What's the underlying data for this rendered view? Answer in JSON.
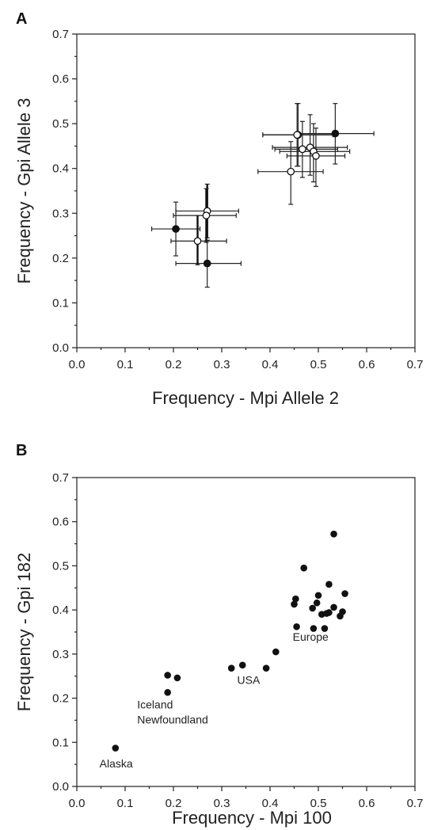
{
  "chart_data": [
    {
      "panel": "A",
      "type": "scatter",
      "xlabel": "Frequency - Mpi Allele 2",
      "ylabel": "Frequency - Gpi Allele 3",
      "xlim": [
        0,
        0.7
      ],
      "ylim": [
        0,
        0.7
      ],
      "xticks": [
        "0.0",
        "0.1",
        "0.2",
        "0.3",
        "0.4",
        "0.5",
        "0.6",
        "0.7"
      ],
      "yticks": [
        "0.0",
        "0.1",
        "0.2",
        "0.3",
        "0.4",
        "0.5",
        "0.6",
        "0.7"
      ],
      "grid": false,
      "series": [
        {
          "marker": "filled",
          "points": [
            {
              "x": 0.205,
              "y": 0.265,
              "xerr": [
                0.155,
                0.255
              ],
              "yerr": [
                0.205,
                0.325
              ]
            },
            {
              "x": 0.27,
              "y": 0.188,
              "xerr": [
                0.205,
                0.34
              ],
              "yerr": [
                0.135,
                0.24
              ]
            },
            {
              "x": 0.535,
              "y": 0.478,
              "xerr": [
                0.455,
                0.615
              ],
              "yerr": [
                0.41,
                0.545
              ]
            },
            {
              "x": 0.458,
              "y": 0.475,
              "xerr": [
                0.385,
                0.535
              ],
              "yerr": [
                0.405,
                0.545
              ]
            }
          ]
        },
        {
          "marker": "open",
          "points": [
            {
              "x": 0.27,
              "y": 0.305,
              "xerr": [
                0.205,
                0.335
              ],
              "yerr": [
                0.245,
                0.365
              ]
            },
            {
              "x": 0.268,
              "y": 0.295,
              "xerr": [
                0.2,
                0.33
              ],
              "yerr": [
                0.235,
                0.355
              ]
            },
            {
              "x": 0.25,
              "y": 0.238,
              "xerr": [
                0.195,
                0.31
              ],
              "yerr": [
                0.185,
                0.295
              ]
            },
            {
              "x": 0.456,
              "y": 0.475,
              "xerr": [
                0.385,
                0.53
              ],
              "yerr": [
                0.405,
                0.545
              ]
            },
            {
              "x": 0.467,
              "y": 0.443,
              "xerr": [
                0.41,
                0.54
              ],
              "yerr": [
                0.38,
                0.505
              ]
            },
            {
              "x": 0.483,
              "y": 0.447,
              "xerr": [
                0.405,
                0.56
              ],
              "yerr": [
                0.385,
                0.52
              ]
            },
            {
              "x": 0.49,
              "y": 0.438,
              "xerr": [
                0.42,
                0.565
              ],
              "yerr": [
                0.37,
                0.5
              ]
            },
            {
              "x": 0.495,
              "y": 0.428,
              "xerr": [
                0.435,
                0.555
              ],
              "yerr": [
                0.36,
                0.49
              ]
            },
            {
              "x": 0.443,
              "y": 0.393,
              "xerr": [
                0.375,
                0.51
              ],
              "yerr": [
                0.32,
                0.46
              ]
            }
          ]
        }
      ]
    },
    {
      "panel": "B",
      "type": "scatter",
      "xlabel": "Frequency - Mpi 100",
      "ylabel": "Frequency - Gpi 182",
      "xlim": [
        0,
        0.7
      ],
      "ylim": [
        0,
        0.7
      ],
      "xticks": [
        "0.0",
        "0.1",
        "0.2",
        "0.3",
        "0.4",
        "0.5",
        "0.6",
        "0.7"
      ],
      "yticks": [
        "0.0",
        "0.1",
        "0.2",
        "0.3",
        "0.4",
        "0.5",
        "0.6",
        "0.7"
      ],
      "grid": false,
      "series": [
        {
          "marker": "filled",
          "points": [
            {
              "x": 0.08,
              "y": 0.087
            },
            {
              "x": 0.188,
              "y": 0.213
            },
            {
              "x": 0.188,
              "y": 0.252
            },
            {
              "x": 0.208,
              "y": 0.246
            },
            {
              "x": 0.32,
              "y": 0.268
            },
            {
              "x": 0.343,
              "y": 0.275
            },
            {
              "x": 0.392,
              "y": 0.268
            },
            {
              "x": 0.412,
              "y": 0.305
            },
            {
              "x": 0.45,
              "y": 0.413
            },
            {
              "x": 0.453,
              "y": 0.425
            },
            {
              "x": 0.455,
              "y": 0.362
            },
            {
              "x": 0.47,
              "y": 0.495
            },
            {
              "x": 0.488,
              "y": 0.404
            },
            {
              "x": 0.49,
              "y": 0.358
            },
            {
              "x": 0.497,
              "y": 0.416
            },
            {
              "x": 0.5,
              "y": 0.433
            },
            {
              "x": 0.507,
              "y": 0.39
            },
            {
              "x": 0.513,
              "y": 0.358
            },
            {
              "x": 0.517,
              "y": 0.392
            },
            {
              "x": 0.522,
              "y": 0.458
            },
            {
              "x": 0.532,
              "y": 0.406
            },
            {
              "x": 0.532,
              "y": 0.572
            },
            {
              "x": 0.545,
              "y": 0.386
            },
            {
              "x": 0.55,
              "y": 0.396
            },
            {
              "x": 0.555,
              "y": 0.437
            },
            {
              "x": 0.522,
              "y": 0.394
            }
          ]
        }
      ],
      "annotations": [
        {
          "text": "Europe",
          "x": 0.447,
          "y": 0.33
        },
        {
          "text": "USA",
          "x": 0.332,
          "y": 0.232
        },
        {
          "text": "Iceland",
          "x": 0.125,
          "y": 0.177
        },
        {
          "text": "Newfoundland",
          "x": 0.125,
          "y": 0.143
        },
        {
          "text": "Alaska",
          "x": 0.047,
          "y": 0.043
        }
      ]
    }
  ]
}
